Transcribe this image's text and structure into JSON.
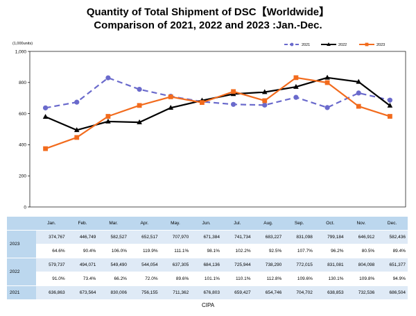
{
  "title_line1": "Quantity of Total Shipment of DSC【Worldwide】",
  "title_line2": "Comparison of 2021, 2022 and 2023 :Jan.-Dec.",
  "source": "CIPA",
  "colors": {
    "s2021": "#6a6acc",
    "s2022": "#000000",
    "s2023": "#f26b1d",
    "table_header": "#bcd7ee",
    "table_value": "#dfeaf6"
  },
  "chart_data": {
    "type": "line",
    "unit_label": "(1,000units)",
    "categories": [
      "Jan.",
      "Feb.",
      "Mar.",
      "Apr.",
      "May.",
      "Jun.",
      "Jul.",
      "Aug.",
      "Sep.",
      "Oct.",
      "Nov.",
      "Dec."
    ],
    "y_ticks": [
      "0",
      "200",
      "400",
      "600",
      "800",
      "1,000"
    ],
    "ylim": [
      0,
      1000
    ],
    "legend_position": "top-right",
    "series": [
      {
        "name": "2021",
        "style": "dashed",
        "marker": "circle",
        "values": [
          636.863,
          673.564,
          830.006,
          756.155,
          711.362,
          676.803,
          659.427,
          654.746,
          704.702,
          638.853,
          732.536,
          686.504
        ]
      },
      {
        "name": "2022",
        "style": "solid",
        "marker": "triangle",
        "values": [
          579.737,
          494.071,
          549.49,
          544.054,
          637.305,
          684.136,
          725.944,
          738.29,
          772.015,
          831.081,
          804.098,
          651.377
        ]
      },
      {
        "name": "2023",
        "style": "solid",
        "marker": "square",
        "values": [
          374.767,
          446.749,
          582.527,
          652.517,
          707.97,
          671.384,
          741.734,
          683.227,
          831.098,
          799.184,
          646.912,
          582.436
        ]
      }
    ]
  },
  "table": {
    "months": [
      "Jan.",
      "Feb.",
      "Mar.",
      "Apr.",
      "May.",
      "Jun.",
      "Jul.",
      "Aug.",
      "Sep.",
      "Oct.",
      "Nov.",
      "Dec."
    ],
    "rows": [
      {
        "year": "2023",
        "values": [
          "374,767",
          "446,749",
          "582,527",
          "652,517",
          "707,970",
          "671,384",
          "741,734",
          "683,227",
          "831,098",
          "799,184",
          "646,912",
          "582,436"
        ],
        "pct": [
          "64.6%",
          "90.4%",
          "106.0%",
          "119.9%",
          "111.1%",
          "98.1%",
          "102.2%",
          "92.5%",
          "107.7%",
          "96.2%",
          "80.5%",
          "89.4%"
        ]
      },
      {
        "year": "2022",
        "values": [
          "579,737",
          "494,071",
          "549,490",
          "544,054",
          "637,305",
          "684,136",
          "725,944",
          "738,290",
          "772,015",
          "831,081",
          "804,098",
          "651,377"
        ],
        "pct": [
          "91.0%",
          "73.4%",
          "66.2%",
          "72.0%",
          "89.6%",
          "101.1%",
          "110.1%",
          "112.8%",
          "109.6%",
          "130.1%",
          "109.8%",
          "94.9%"
        ]
      },
      {
        "year": "2021",
        "values": [
          "636,863",
          "673,564",
          "830,006",
          "756,155",
          "711,362",
          "676,803",
          "659,427",
          "654,746",
          "704,702",
          "638,853",
          "732,536",
          "686,504"
        ]
      }
    ]
  }
}
